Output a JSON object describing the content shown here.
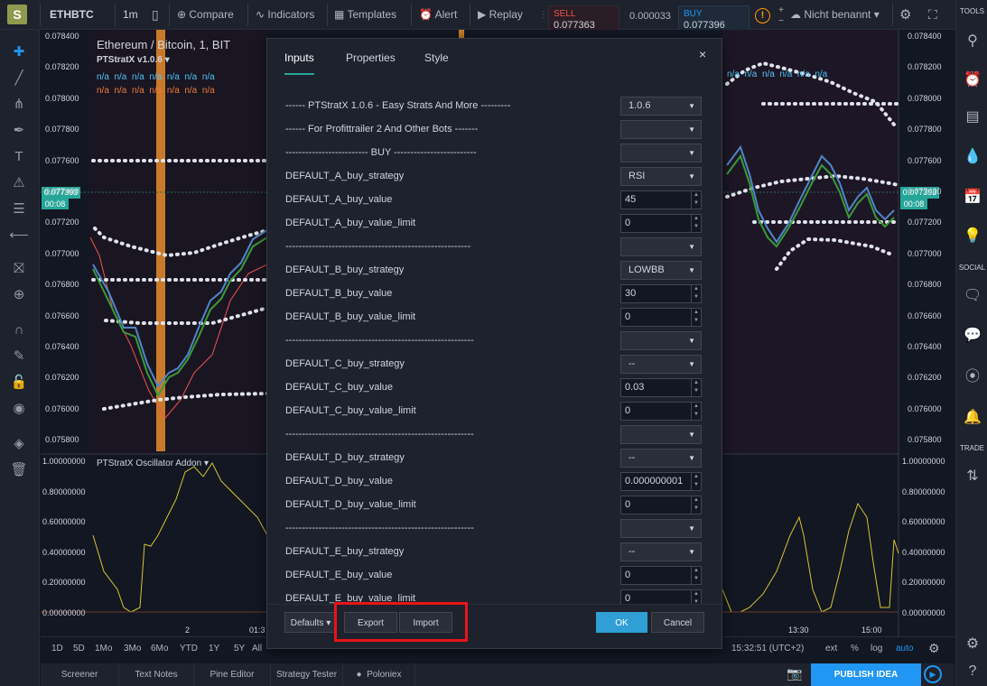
{
  "topbar": {
    "logo": "S",
    "symbol": "ETHBTC",
    "interval": "1m",
    "compare": "Compare",
    "indicators": "Indicators",
    "templates": "Templates",
    "alert": "Alert",
    "replay": "Replay",
    "sell_label": "SELL",
    "sell_price": "0.077363",
    "spread": "0.000033",
    "buy_label": "BUY",
    "buy_price": "0.077396",
    "layout_name": "Nicht benannt"
  },
  "chart": {
    "title": "Ethereum / Bitcoin, 1, BIT",
    "indicator_name": "PTStratX v1.0.6",
    "oscillator_name": "PTStratX Oscillator Addon",
    "na": "n/a",
    "price_tag": "0.077393",
    "price_time": "00:08",
    "y_labels": [
      "0.078400",
      "0.078200",
      "0.078000",
      "0.077800",
      "0.077600",
      "0.077400",
      "0.077200",
      "0.077000",
      "0.076800",
      "0.076600",
      "0.076400",
      "0.076200",
      "0.076000",
      "0.075800"
    ],
    "osc_labels": [
      "1.00000000",
      "0.80000000",
      "0.60000000",
      "0.40000000",
      "0.20000000",
      "0.00000000"
    ],
    "x_labels": [
      "2",
      "01:3",
      "13:30",
      "15:00"
    ],
    "colors": {
      "up": "#26a69a",
      "down": "#ef5350",
      "accent": "#2196f3",
      "osc": "#d4c531",
      "band": "#e0e3eb"
    }
  },
  "bottombar": {
    "ranges": [
      "1D",
      "5D",
      "1Mo",
      "3Mo",
      "6Mo",
      "YTD",
      "1Y",
      "5Y",
      "All"
    ],
    "time": "15:32:51 (UTC+2)",
    "ext": "ext",
    "pct": "%",
    "log": "log",
    "auto": "auto"
  },
  "tabs": [
    "Screener",
    "Text Notes",
    "Pine Editor",
    "Strategy Tester",
    "Poloniex"
  ],
  "publish": "PUBLISH IDEA",
  "righttb": {
    "tools": "TOOLS",
    "social": "SOCIAL",
    "trade": "TRADE"
  },
  "dialog": {
    "tabs": [
      "Inputs",
      "Properties",
      "Style"
    ],
    "rows": [
      {
        "label": "------ PTStratX 1.0.6 - Easy Strats And More ---------",
        "kind": "select",
        "value": "1.0.6"
      },
      {
        "label": "------ For Profittrailer 2 And Other Bots -------",
        "kind": "select",
        "value": ""
      },
      {
        "label": "------------------------- BUY -------------------------",
        "kind": "select",
        "value": ""
      },
      {
        "label": "DEFAULT_A_buy_strategy",
        "kind": "select",
        "value": "RSI"
      },
      {
        "label": "DEFAULT_A_buy_value",
        "kind": "input",
        "value": "45"
      },
      {
        "label": "DEFAULT_A_buy_value_limit",
        "kind": "input",
        "value": "0"
      },
      {
        "label": "--------------------------------------------------------",
        "kind": "select",
        "value": ""
      },
      {
        "label": "DEFAULT_B_buy_strategy",
        "kind": "select",
        "value": "LOWBB"
      },
      {
        "label": "DEFAULT_B_buy_value",
        "kind": "input",
        "value": "30"
      },
      {
        "label": "DEFAULT_B_buy_value_limit",
        "kind": "input",
        "value": "0"
      },
      {
        "label": "---------------------------------------------------------",
        "kind": "select",
        "value": ""
      },
      {
        "label": "DEFAULT_C_buy_strategy",
        "kind": "select",
        "value": "--"
      },
      {
        "label": "DEFAULT_C_buy_value",
        "kind": "input",
        "value": "0.03"
      },
      {
        "label": "DEFAULT_C_buy_value_limit",
        "kind": "input",
        "value": "0"
      },
      {
        "label": "---------------------------------------------------------",
        "kind": "select",
        "value": ""
      },
      {
        "label": "DEFAULT_D_buy_strategy",
        "kind": "select",
        "value": "--"
      },
      {
        "label": "DEFAULT_D_buy_value",
        "kind": "input",
        "value": "0.000000001"
      },
      {
        "label": "DEFAULT_D_buy_value_limit",
        "kind": "input",
        "value": "0"
      },
      {
        "label": "---------------------------------------------------------",
        "kind": "select",
        "value": ""
      },
      {
        "label": "DEFAULT_E_buy_strategy",
        "kind": "select",
        "value": "--"
      },
      {
        "label": "DEFAULT_E_buy_value",
        "kind": "input",
        "value": "0"
      },
      {
        "label": "DEFAULT_E_buy_value_limit",
        "kind": "input",
        "value": "0"
      }
    ],
    "defaults": "Defaults",
    "export": "Export",
    "import": "Import",
    "ok": "OK",
    "cancel": "Cancel"
  }
}
